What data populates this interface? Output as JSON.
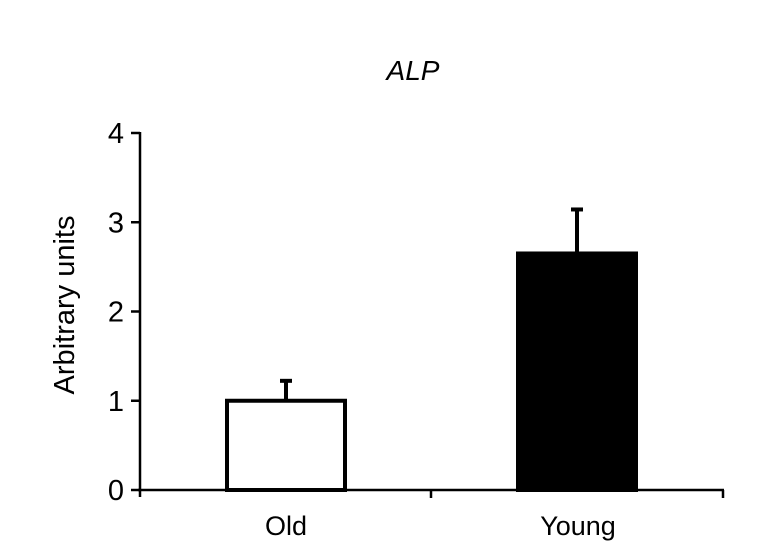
{
  "chart_data": {
    "type": "bar",
    "title": "ALP",
    "xlabel": "",
    "ylabel": "Arbitrary units",
    "categories": [
      "Old",
      "Young"
    ],
    "values": [
      1.0,
      2.65
    ],
    "error_bars": [
      0.24,
      0.51
    ],
    "bar_colors": [
      "#ffffff",
      "#000000"
    ],
    "bar_edge_color": "#000000",
    "ylim": [
      0,
      4
    ],
    "yticks": [
      0,
      1,
      2,
      3,
      4
    ],
    "grid": false,
    "legend": null
  },
  "labels": {
    "title": "ALP",
    "ylabel": "Arbitrary units",
    "yticks": [
      "0",
      "1",
      "2",
      "3",
      "4"
    ],
    "categories": [
      "Old",
      "Young"
    ]
  }
}
